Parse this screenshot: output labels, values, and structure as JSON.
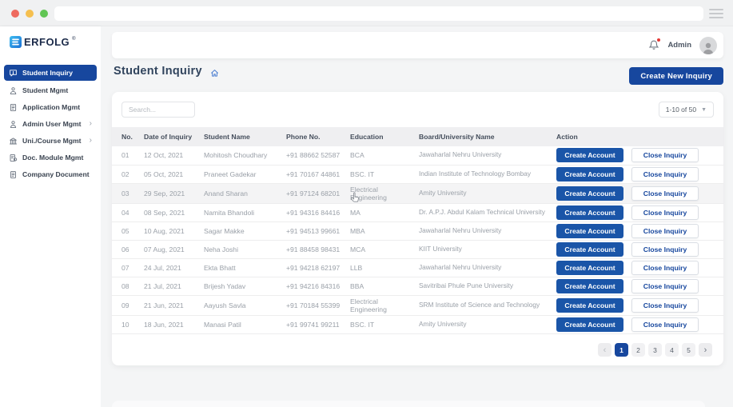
{
  "browser": {
    "url_value": "",
    "traffic_light_colors": [
      "#ee6a5f",
      "#f5bf4f",
      "#61c554"
    ]
  },
  "sidebar": {
    "logo_text": "ERFOLG",
    "logo_registered_mark": "®",
    "items": [
      {
        "label": "Student Inquiry",
        "icon": "chat-icon",
        "active": true,
        "has_submenu": false
      },
      {
        "label": "Student Mgmt",
        "icon": "student-icon",
        "active": false,
        "has_submenu": false
      },
      {
        "label": "Application Mgmt",
        "icon": "application-icon",
        "active": false,
        "has_submenu": false
      },
      {
        "label": "Admin User Mgmt",
        "icon": "user-icon",
        "active": false,
        "has_submenu": true
      },
      {
        "label": "Uni./Course Mgmt",
        "icon": "university-icon",
        "active": false,
        "has_submenu": true
      },
      {
        "label": "Doc. Module Mgmt",
        "icon": "doc-module-icon",
        "active": false,
        "has_submenu": false
      },
      {
        "label": "Company Document",
        "icon": "company-doc-icon",
        "active": false,
        "has_submenu": false
      }
    ]
  },
  "topbar": {
    "user_label": "Admin"
  },
  "page": {
    "title": "Student Inquiry",
    "create_button_label": "Create New Inquiry"
  },
  "toolbar": {
    "search_placeholder": "Search...",
    "range_label": "1-10 of 50"
  },
  "table": {
    "headers": [
      "No.",
      "Date of Inquiry",
      "Student Name",
      "Phone No.",
      "Education",
      "Board/University Name",
      "Action"
    ],
    "action_labels": {
      "create": "Create Account",
      "close": "Close Inquiry"
    },
    "rows": [
      {
        "no": "01",
        "date": "12 Oct, 2021",
        "name": "Mohitosh Choudhary",
        "phone": "+91 88662 52587",
        "education": "BCA",
        "university": "Jawaharlal Nehru University",
        "highlighted": false
      },
      {
        "no": "02",
        "date": "05 Oct, 2021",
        "name": "Praneet Gadekar",
        "phone": "+91 70167 44861",
        "education": "BSC. IT",
        "university": "Indian Institute of Technology Bombay",
        "highlighted": false
      },
      {
        "no": "03",
        "date": "29 Sep, 2021",
        "name": "Anand Sharan",
        "phone": "+91 97124 68201",
        "education": "Electrical Engineering",
        "university": "Amity University",
        "highlighted": true
      },
      {
        "no": "04",
        "date": "08 Sep, 2021",
        "name": "Namita Bhandoli",
        "phone": "+91 94316 84416",
        "education": "MA",
        "university": "Dr. A.P.J. Abdul Kalam Technical University",
        "highlighted": false
      },
      {
        "no": "05",
        "date": "10 Aug, 2021",
        "name": "Sagar Makke",
        "phone": "+91 94513 99661",
        "education": "MBA",
        "university": "Jawaharlal Nehru University",
        "highlighted": false
      },
      {
        "no": "06",
        "date": "07 Aug, 2021",
        "name": "Neha Joshi",
        "phone": "+91 88458 98431",
        "education": "MCA",
        "university": "KIIT University",
        "highlighted": false
      },
      {
        "no": "07",
        "date": "24 Jul, 2021",
        "name": "Ekta Bhatt",
        "phone": "+91 94218 62197",
        "education": "LLB",
        "university": "Jawaharlal Nehru University",
        "highlighted": false
      },
      {
        "no": "08",
        "date": "21 Jul, 2021",
        "name": "Brijesh Yadav",
        "phone": "+91 94216 84316",
        "education": "BBA",
        "university": "Savitribai Phule Pune University",
        "highlighted": false
      },
      {
        "no": "09",
        "date": "21 Jun, 2021",
        "name": "Aayush Savla",
        "phone": "+91 70184 55399",
        "education": "Electrical Engineering",
        "university": "SRM Institute of Science and Technology",
        "highlighted": false
      },
      {
        "no": "10",
        "date": "18 Jun, 2021",
        "name": "Manasi Patil",
        "phone": "+91 99741 99211",
        "education": "BSC. IT",
        "university": "Amity University",
        "highlighted": false
      }
    ]
  },
  "pagination": {
    "pages": [
      "1",
      "2",
      "3",
      "4",
      "5"
    ],
    "active_page": "1",
    "prev_label": "‹",
    "next_label": "›"
  },
  "colors": {
    "brand_blue": "#17479e",
    "button_blue": "#1a55a8",
    "notification_red": "#e53935",
    "active_row_gray": "#f4f4f5"
  }
}
